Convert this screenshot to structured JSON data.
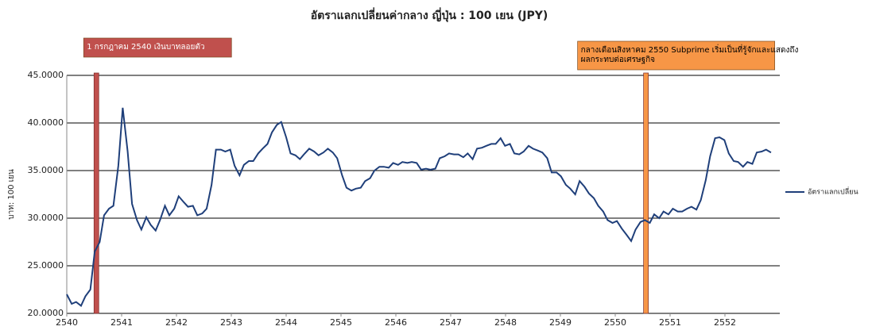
{
  "chart_data": {
    "type": "line",
    "title": "อัตราแลกเปลี่ยนค่ากลาง ญี่ปุ่น : 100 เยน (JPY)",
    "y_label": "บาท: 100 เยน",
    "x": [
      2540.0,
      2540.09,
      2540.17,
      2540.26,
      2540.34,
      2540.43,
      2540.51,
      2540.6,
      2540.68,
      2540.77,
      2540.85,
      2540.94,
      2541.02,
      2541.11,
      2541.19,
      2541.28,
      2541.36,
      2541.45,
      2541.53,
      2541.62,
      2541.7,
      2541.79,
      2541.87,
      2541.96,
      2542.04,
      2542.13,
      2542.21,
      2542.3,
      2542.38,
      2542.47,
      2542.55,
      2542.64,
      2542.72,
      2542.81,
      2542.89,
      2542.98,
      2543.06,
      2543.15,
      2543.23,
      2543.32,
      2543.4,
      2543.49,
      2543.57,
      2543.66,
      2543.74,
      2543.83,
      2543.91,
      2544.0,
      2544.08,
      2544.17,
      2544.25,
      2544.34,
      2544.42,
      2544.51,
      2544.59,
      2544.68,
      2544.76,
      2544.85,
      2544.93,
      2545.02,
      2545.1,
      2545.19,
      2545.27,
      2545.36,
      2545.44,
      2545.53,
      2545.61,
      2545.7,
      2545.78,
      2545.87,
      2545.95,
      2546.04,
      2546.12,
      2546.21,
      2546.29,
      2546.38,
      2546.46,
      2546.55,
      2546.63,
      2546.72,
      2546.8,
      2546.89,
      2546.97,
      2547.06,
      2547.14,
      2547.23,
      2547.31,
      2547.4,
      2547.48,
      2547.57,
      2547.65,
      2547.74,
      2547.82,
      2547.91,
      2547.99,
      2548.08,
      2548.16,
      2548.25,
      2548.33,
      2548.42,
      2548.5,
      2548.59,
      2548.67,
      2548.76,
      2548.84,
      2548.93,
      2549.01,
      2549.1,
      2549.18,
      2549.27,
      2549.35,
      2549.44,
      2549.52,
      2549.61,
      2549.69,
      2549.78,
      2549.86,
      2549.95,
      2550.03,
      2550.12,
      2550.2,
      2550.29,
      2550.37,
      2550.46,
      2550.54,
      2550.63,
      2550.71,
      2550.8,
      2550.88,
      2550.97,
      2551.05,
      2551.14,
      2551.22,
      2551.31,
      2551.39,
      2551.48,
      2551.56,
      2551.65,
      2551.73,
      2551.82,
      2551.9,
      2551.99,
      2552.07,
      2552.16,
      2552.24,
      2552.33,
      2552.41,
      2552.5,
      2552.58,
      2552.67,
      2552.75,
      2552.84
    ],
    "series": [
      {
        "name": "อัตราแลกเปลี่ยน",
        "color": "#1f3f7a",
        "values": [
          22.0,
          21.0,
          21.2,
          20.8,
          21.8,
          22.5,
          26.5,
          27.5,
          30.3,
          31.0,
          31.3,
          35.5,
          41.6,
          37.0,
          31.5,
          29.8,
          28.8,
          30.1,
          29.3,
          28.7,
          29.8,
          31.3,
          30.3,
          31.0,
          32.3,
          31.7,
          31.2,
          31.3,
          30.3,
          30.5,
          31.0,
          33.5,
          37.2,
          37.2,
          37.0,
          37.2,
          35.5,
          34.5,
          35.6,
          36.0,
          36.0,
          36.8,
          37.3,
          37.8,
          39.0,
          39.8,
          40.1,
          38.5,
          36.8,
          36.6,
          36.2,
          36.8,
          37.3,
          37.0,
          36.6,
          36.9,
          37.3,
          36.9,
          36.3,
          34.5,
          33.2,
          32.9,
          33.1,
          33.2,
          33.9,
          34.2,
          35.0,
          35.4,
          35.4,
          35.3,
          35.8,
          35.6,
          35.9,
          35.8,
          35.9,
          35.8,
          35.1,
          35.2,
          35.1,
          35.2,
          36.3,
          36.5,
          36.8,
          36.7,
          36.7,
          36.4,
          36.8,
          36.2,
          37.3,
          37.4,
          37.6,
          37.8,
          37.8,
          38.4,
          37.6,
          37.8,
          36.8,
          36.7,
          37.0,
          37.6,
          37.3,
          37.1,
          36.9,
          36.3,
          34.8,
          34.8,
          34.4,
          33.5,
          33.1,
          32.5,
          33.9,
          33.3,
          32.6,
          32.1,
          31.3,
          30.7,
          29.8,
          29.5,
          29.7,
          28.9,
          28.3,
          27.6,
          28.8,
          29.6,
          29.8,
          29.5,
          30.4,
          30.0,
          30.7,
          30.4,
          31.0,
          30.7,
          30.7,
          31.0,
          31.2,
          30.9,
          31.9,
          34.0,
          36.5,
          38.4,
          38.5,
          38.2,
          36.8,
          36.0,
          35.9,
          35.4,
          35.9,
          35.7,
          36.9,
          37.0,
          37.2,
          36.9
        ]
      }
    ],
    "xlim": [
      2540,
      2553
    ],
    "xticks": [
      2540,
      2541,
      2542,
      2543,
      2544,
      2545,
      2546,
      2547,
      2548,
      2549,
      2550,
      2551,
      2552
    ],
    "ylim": [
      20,
      45
    ],
    "yticks": [
      {
        "value": 20,
        "label": "20.0000"
      },
      {
        "value": 25,
        "label": "25.0000"
      },
      {
        "value": 30,
        "label": "30.0000"
      },
      {
        "value": 35,
        "label": "35.0000"
      },
      {
        "value": 40,
        "label": "40.0000"
      },
      {
        "value": 45,
        "label": "45.0000"
      }
    ],
    "grid": true,
    "legend": "right",
    "annotations": [
      {
        "x": 2540.54,
        "color": "#c0504d",
        "text": [
          "1 กรกฎาคม 2540 เงินบาทลอยตัว"
        ]
      },
      {
        "x": 2550.56,
        "color": "#f79646",
        "text": [
          "กลางเดือนสิงหาคม 2550 Subprime เริ่มเป็นที่รู้จักและแสดงถึง",
          "ผลกระทบต่อเศรษฐกิจ"
        ]
      }
    ]
  }
}
